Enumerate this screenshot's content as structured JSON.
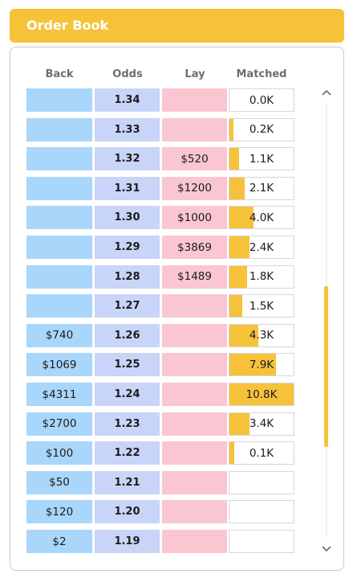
{
  "header": {
    "title": "Order Book"
  },
  "columns": {
    "back": "Back",
    "odds": "Odds",
    "lay": "Lay",
    "matched": "Matched"
  },
  "colors": {
    "accent": "#f6c23a",
    "back": "#a9d6fb",
    "odds": "#c8d5f8",
    "lay": "#f9c6d2"
  },
  "icons": {
    "scroll_up": "chevron-up-icon",
    "scroll_down": "chevron-down-icon"
  },
  "rows": [
    {
      "back": "",
      "odds": "1.34",
      "lay": "",
      "matched": "0.0K",
      "fill": 0.0
    },
    {
      "back": "",
      "odds": "1.33",
      "lay": "",
      "matched": "0.2K",
      "fill": 0.06
    },
    {
      "back": "",
      "odds": "1.32",
      "lay": "$520",
      "matched": "1.1K",
      "fill": 0.15
    },
    {
      "back": "",
      "odds": "1.31",
      "lay": "$1200",
      "matched": "2.1K",
      "fill": 0.24
    },
    {
      "back": "",
      "odds": "1.30",
      "lay": "$1000",
      "matched": "4.0K",
      "fill": 0.37
    },
    {
      "back": "",
      "odds": "1.29",
      "lay": "$3869",
      "matched": "2.4K",
      "fill": 0.31
    },
    {
      "back": "",
      "odds": "1.28",
      "lay": "$1489",
      "matched": "1.8K",
      "fill": 0.27
    },
    {
      "back": "",
      "odds": "1.27",
      "lay": "",
      "matched": "1.5K",
      "fill": 0.2
    },
    {
      "back": "$740",
      "odds": "1.26",
      "lay": "",
      "matched": "4.3K",
      "fill": 0.45
    },
    {
      "back": "$1069",
      "odds": "1.25",
      "lay": "",
      "matched": "7.9K",
      "fill": 0.73
    },
    {
      "back": "$4311",
      "odds": "1.24",
      "lay": "",
      "matched": "10.8K",
      "fill": 1.0
    },
    {
      "back": "$2700",
      "odds": "1.23",
      "lay": "",
      "matched": "3.4K",
      "fill": 0.31
    },
    {
      "back": "$100",
      "odds": "1.22",
      "lay": "",
      "matched": "0.1K",
      "fill": 0.07
    },
    {
      "back": "$50",
      "odds": "1.21",
      "lay": "",
      "matched": "",
      "fill": 0.0
    },
    {
      "back": "$120",
      "odds": "1.20",
      "lay": "",
      "matched": "",
      "fill": 0.0
    },
    {
      "back": "$2",
      "odds": "1.19",
      "lay": "",
      "matched": "",
      "fill": 0.0
    }
  ]
}
